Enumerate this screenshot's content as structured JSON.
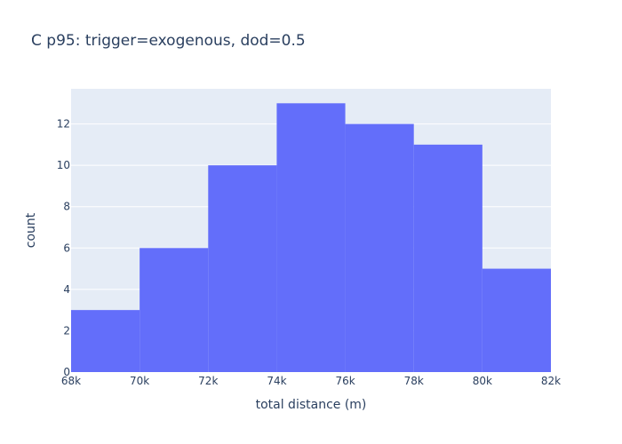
{
  "chart_data": {
    "type": "bar",
    "title": "C p95: trigger=exogenous, dod=0.5",
    "xlabel": "total distance (m)",
    "ylabel": "count",
    "bins": [
      {
        "start": 68000,
        "end": 70000,
        "count": 3
      },
      {
        "start": 70000,
        "end": 72000,
        "count": 6
      },
      {
        "start": 72000,
        "end": 74000,
        "count": 10
      },
      {
        "start": 74000,
        "end": 76000,
        "count": 13
      },
      {
        "start": 76000,
        "end": 78000,
        "count": 12
      },
      {
        "start": 78000,
        "end": 80000,
        "count": 11
      },
      {
        "start": 80000,
        "end": 82000,
        "count": 5
      }
    ],
    "xlim": [
      68000,
      82000
    ],
    "ylim": [
      0,
      13.7
    ],
    "x_ticks": [
      68000,
      70000,
      72000,
      74000,
      76000,
      78000,
      80000,
      82000
    ],
    "x_tick_labels": [
      "68k",
      "70k",
      "72k",
      "74k",
      "76k",
      "78k",
      "80k",
      "82k"
    ],
    "y_ticks": [
      0,
      2,
      4,
      6,
      8,
      10,
      12
    ],
    "y_tick_labels": [
      "0",
      "2",
      "4",
      "6",
      "8",
      "10",
      "12"
    ],
    "grid": true,
    "bar_color": "#636efa",
    "plot_bg": "#e5ecf6",
    "gridline_color": "#ffffff",
    "text_color": "#2a3f5f"
  }
}
